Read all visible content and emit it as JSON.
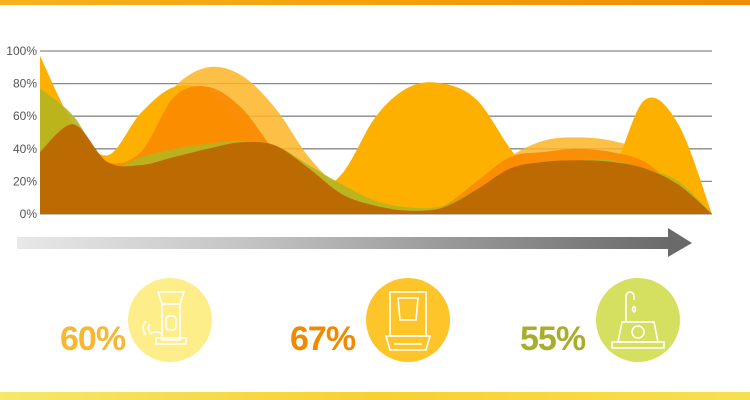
{
  "chart_data": {
    "type": "area",
    "title": "",
    "xlabel": "",
    "ylabel": "",
    "ylim": [
      0,
      100
    ],
    "yticks": [
      "0%",
      "20%",
      "40%",
      "60%",
      "80%",
      "100%"
    ],
    "ytick_values": [
      0,
      20,
      40,
      60,
      80,
      100
    ],
    "grid": true,
    "x": [
      0,
      1,
      2,
      3,
      4,
      5,
      6,
      7,
      8,
      9,
      10,
      11,
      12,
      13,
      14,
      15,
      16,
      17,
      18,
      19,
      20
    ],
    "series": [
      {
        "color": "#fbb526",
        "opacity": 0.85,
        "values": [
          40,
          38,
          35,
          50,
          78,
          90,
          85,
          65,
          35,
          15,
          8,
          5,
          8,
          15,
          35,
          45,
          47,
          45,
          38,
          20,
          0
        ]
      },
      {
        "color": "#fdb000",
        "opacity": 1,
        "values": [
          97,
          55,
          36,
          62,
          78,
          75,
          55,
          28,
          12,
          25,
          60,
          78,
          80,
          70,
          40,
          15,
          12,
          25,
          70,
          55,
          0
        ]
      },
      {
        "color": "#f98a00",
        "opacity": 0.9,
        "values": [
          40,
          52,
          32,
          38,
          72,
          78,
          65,
          38,
          15,
          5,
          2,
          2,
          5,
          20,
          35,
          38,
          40,
          38,
          32,
          15,
          0
        ]
      },
      {
        "color": "#b5b520",
        "opacity": 0.9,
        "values": [
          77,
          60,
          30,
          35,
          40,
          43,
          45,
          42,
          30,
          18,
          8,
          4,
          5,
          15,
          25,
          30,
          33,
          33,
          28,
          20,
          0
        ]
      },
      {
        "color": "#bb6500",
        "opacity": 0.92,
        "values": [
          38,
          55,
          32,
          30,
          35,
          40,
          44,
          42,
          28,
          12,
          5,
          2,
          4,
          15,
          28,
          32,
          33,
          32,
          28,
          18,
          0
        ]
      }
    ]
  },
  "stats": [
    {
      "value": "60%",
      "color": "#f7b731",
      "circle_color": "#fdee8a",
      "icon": "pet-feeder-icon"
    },
    {
      "value": "67%",
      "color": "#f08a00",
      "circle_color": "#fec52a",
      "icon": "litter-box-icon"
    },
    {
      "value": "55%",
      "color": "#a8ae2a",
      "circle_color": "#d5e060",
      "icon": "pet-water-fountain-icon"
    }
  ]
}
